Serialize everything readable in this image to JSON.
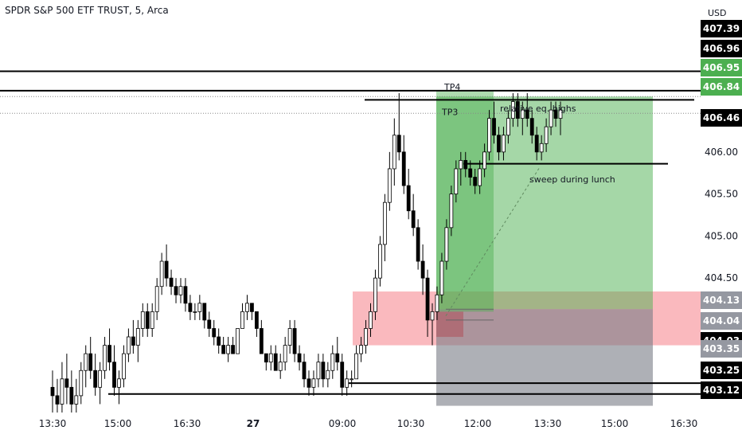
{
  "header": {
    "title": "SPDR S&P 500 ETF TRUST, 5, Arca",
    "currency": "USD"
  },
  "colors": {
    "up_candle": "#ffffff",
    "down_candle": "#000000",
    "wick": "#000000",
    "profit_zone": "#4caf50",
    "loss_zone": "#787b86",
    "supply_zone": "#f23645",
    "tag_dark": "#000000",
    "tag_green": "#4caf50"
  },
  "chart_data": {
    "type": "candlestick",
    "symbol": "SPDR S&P 500 ETF TRUST",
    "interval": "5",
    "exchange": "Arca",
    "ylim": [
      402.9,
      407.6
    ],
    "y_ticks": [
      "406.00",
      "405.50",
      "405.00",
      "404.50"
    ],
    "x_ticks": [
      "13:30",
      "15:00",
      "16:30",
      "27",
      "09:00",
      "10:30",
      "12:00",
      "13:30",
      "15:00",
      "16:30"
    ],
    "price_tags": [
      {
        "label": "407.39",
        "style": "dark-cut"
      },
      {
        "label": "406.96",
        "style": "dark"
      },
      {
        "label": "406.95",
        "style": "green"
      },
      {
        "label": "406.84",
        "style": "green"
      },
      {
        "label": "406.46",
        "style": "dark"
      },
      {
        "label": "404.13",
        "style": "gray"
      },
      {
        "label": "404.04",
        "style": "gray"
      },
      {
        "label": "404.03",
        "style": "dark"
      },
      {
        "label": "403.35",
        "style": "gray-cut"
      },
      {
        "label": "403.25",
        "style": "dark"
      },
      {
        "label": "403.12",
        "style": "dark"
      }
    ],
    "horizontal_lines": [
      {
        "price": 406.96,
        "style": "solid"
      },
      {
        "price": 406.73,
        "style": "solid"
      },
      {
        "price": 406.62,
        "style": "solid"
      },
      {
        "price": 406.66,
        "style": "dotted"
      },
      {
        "price": 406.46,
        "style": "dotted"
      },
      {
        "price": 405.86,
        "style": "solid"
      },
      {
        "price": 403.25,
        "style": "solid"
      },
      {
        "price": 403.12,
        "style": "solid"
      }
    ],
    "annotations": [
      "TP4",
      "TP3",
      "relative eq. highs",
      "sweep during lunch"
    ],
    "position": {
      "entry": 404.13,
      "stop": 402.98,
      "target": 406.66,
      "entry_tp3": 404.1,
      "tp3": 406.72
    },
    "supply_zone": {
      "top": 404.34,
      "bottom": 403.7
    },
    "candles": [
      [
        403.2,
        403.4,
        402.8,
        403.1
      ],
      [
        403.1,
        403.3,
        402.8,
        403.0
      ],
      [
        403.0,
        403.5,
        402.9,
        403.3
      ],
      [
        403.3,
        403.6,
        403.0,
        403.2
      ],
      [
        403.2,
        403.4,
        402.9,
        403.0
      ],
      [
        403.0,
        403.3,
        402.8,
        403.1
      ],
      [
        403.1,
        403.5,
        403.0,
        403.4
      ],
      [
        403.4,
        403.7,
        403.2,
        403.6
      ],
      [
        403.6,
        403.8,
        403.3,
        403.4
      ],
      [
        403.4,
        403.6,
        403.1,
        403.2
      ],
      [
        403.2,
        403.5,
        403.0,
        403.4
      ],
      [
        403.4,
        403.8,
        403.3,
        403.7
      ],
      [
        403.7,
        403.9,
        403.4,
        403.5
      ],
      [
        403.5,
        403.7,
        403.1,
        403.2
      ],
      [
        403.2,
        403.4,
        403.0,
        403.3
      ],
      [
        403.3,
        403.7,
        403.2,
        403.6
      ],
      [
        403.6,
        403.9,
        403.5,
        403.8
      ],
      [
        403.8,
        404.0,
        403.6,
        403.7
      ],
      [
        403.7,
        404.0,
        403.5,
        403.9
      ],
      [
        403.9,
        404.2,
        403.8,
        404.1
      ],
      [
        404.1,
        404.2,
        403.8,
        403.9
      ],
      [
        403.9,
        404.2,
        403.8,
        404.1
      ],
      [
        404.1,
        404.5,
        404.0,
        404.4
      ],
      [
        404.4,
        404.8,
        404.3,
        404.7
      ],
      [
        404.7,
        404.9,
        404.4,
        404.5
      ],
      [
        404.5,
        404.6,
        404.3,
        404.4
      ],
      [
        404.4,
        404.5,
        404.2,
        404.3
      ],
      [
        404.3,
        404.5,
        404.2,
        404.4
      ],
      [
        404.4,
        404.5,
        404.1,
        404.2
      ],
      [
        404.2,
        404.3,
        404.0,
        404.1
      ],
      [
        404.1,
        404.2,
        404.0,
        404.1
      ],
      [
        404.1,
        404.3,
        404.0,
        404.2
      ],
      [
        404.2,
        404.2,
        403.9,
        404.0
      ],
      [
        404.0,
        404.1,
        403.8,
        403.9
      ],
      [
        403.9,
        404.0,
        403.7,
        403.8
      ],
      [
        403.8,
        403.9,
        403.6,
        403.7
      ],
      [
        403.7,
        403.8,
        403.6,
        403.6
      ],
      [
        403.6,
        403.8,
        403.5,
        403.7
      ],
      [
        403.7,
        403.8,
        403.6,
        403.6
      ],
      [
        403.6,
        403.9,
        403.6,
        403.9
      ],
      [
        403.9,
        404.2,
        403.9,
        404.1
      ],
      [
        404.1,
        404.3,
        404.0,
        404.2
      ],
      [
        404.2,
        404.2,
        404.0,
        404.1
      ],
      [
        404.1,
        404.1,
        403.8,
        403.9
      ],
      [
        403.9,
        404.0,
        403.6,
        403.6
      ],
      [
        403.6,
        403.6,
        403.4,
        403.5
      ],
      [
        403.5,
        403.7,
        403.4,
        403.6
      ],
      [
        403.6,
        403.7,
        403.4,
        403.4
      ],
      [
        403.4,
        403.6,
        403.3,
        403.5
      ],
      [
        403.5,
        403.8,
        403.4,
        403.7
      ],
      [
        403.7,
        404.0,
        403.6,
        403.9
      ],
      [
        403.9,
        404.0,
        403.5,
        403.6
      ],
      [
        403.6,
        403.7,
        403.4,
        403.5
      ],
      [
        403.5,
        403.6,
        403.2,
        403.3
      ],
      [
        403.3,
        403.4,
        403.1,
        403.2
      ],
      [
        403.2,
        403.4,
        403.1,
        403.3
      ],
      [
        403.3,
        403.6,
        403.2,
        403.5
      ],
      [
        403.5,
        403.6,
        403.2,
        403.3
      ],
      [
        403.3,
        403.5,
        403.2,
        403.4
      ],
      [
        403.4,
        403.7,
        403.3,
        403.6
      ],
      [
        403.6,
        403.8,
        403.4,
        403.5
      ],
      [
        403.5,
        403.6,
        403.1,
        403.2
      ],
      [
        403.2,
        403.4,
        403.1,
        403.3
      ],
      [
        403.3,
        403.4,
        403.2,
        403.3
      ],
      [
        403.3,
        403.7,
        403.3,
        403.6
      ],
      [
        403.6,
        403.8,
        403.5,
        403.7
      ],
      [
        403.7,
        404.0,
        403.6,
        403.9
      ],
      [
        403.9,
        404.2,
        403.8,
        404.1
      ],
      [
        404.1,
        404.6,
        404.0,
        404.5
      ],
      [
        404.5,
        405.0,
        404.4,
        404.9
      ],
      [
        404.9,
        405.5,
        404.7,
        405.4
      ],
      [
        405.4,
        406.0,
        405.3,
        405.8
      ],
      [
        405.8,
        406.4,
        405.6,
        406.2
      ],
      [
        406.2,
        406.7,
        405.9,
        406.0
      ],
      [
        406.0,
        406.2,
        405.5,
        405.6
      ],
      [
        405.6,
        405.8,
        405.2,
        405.3
      ],
      [
        405.3,
        405.5,
        405.0,
        405.1
      ],
      [
        405.1,
        405.2,
        404.6,
        404.7
      ],
      [
        404.7,
        404.9,
        404.3,
        404.5
      ],
      [
        404.5,
        404.6,
        403.8,
        404.0
      ],
      [
        404.0,
        404.2,
        403.7,
        404.1
      ],
      [
        404.1,
        404.4,
        404.0,
        404.3
      ],
      [
        404.3,
        404.8,
        404.2,
        404.7
      ],
      [
        404.7,
        405.2,
        404.6,
        405.1
      ],
      [
        405.1,
        405.6,
        405.0,
        405.5
      ],
      [
        405.5,
        405.9,
        405.4,
        405.8
      ],
      [
        405.8,
        406.0,
        405.6,
        405.9
      ],
      [
        405.9,
        406.0,
        405.7,
        405.8
      ],
      [
        405.8,
        405.9,
        405.6,
        405.7
      ],
      [
        405.7,
        405.8,
        405.5,
        405.6
      ],
      [
        405.6,
        405.9,
        405.5,
        405.8
      ],
      [
        405.8,
        406.1,
        405.7,
        406.0
      ],
      [
        406.0,
        406.5,
        405.9,
        406.4
      ],
      [
        406.4,
        406.6,
        406.1,
        406.2
      ],
      [
        406.2,
        406.3,
        405.9,
        406.0
      ],
      [
        406.0,
        406.3,
        405.9,
        406.2
      ],
      [
        406.2,
        406.5,
        406.1,
        406.4
      ],
      [
        406.4,
        406.7,
        406.3,
        406.6
      ],
      [
        406.6,
        406.7,
        406.3,
        406.4
      ],
      [
        406.4,
        406.6,
        406.2,
        406.5
      ],
      [
        406.5,
        406.7,
        406.3,
        406.4
      ],
      [
        406.4,
        406.5,
        406.1,
        406.2
      ],
      [
        406.2,
        406.3,
        405.9,
        406.0
      ],
      [
        406.0,
        406.2,
        405.9,
        406.1
      ],
      [
        406.1,
        406.4,
        406.0,
        406.3
      ],
      [
        406.3,
        406.6,
        406.2,
        406.5
      ],
      [
        406.5,
        406.6,
        406.3,
        406.4
      ],
      [
        406.4,
        406.6,
        406.2,
        406.5
      ]
    ]
  }
}
